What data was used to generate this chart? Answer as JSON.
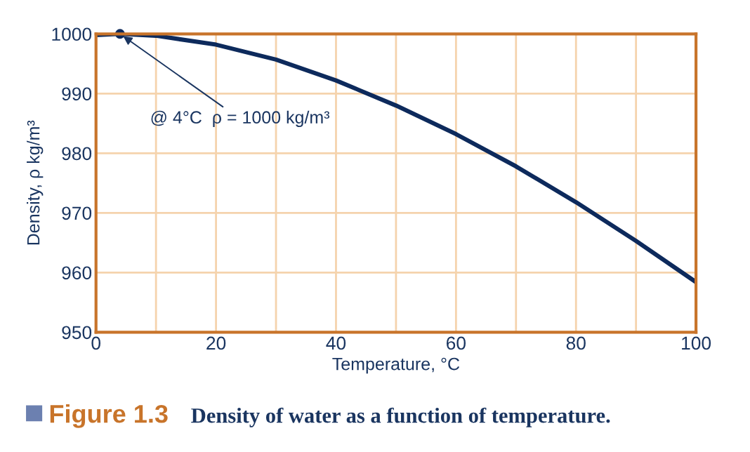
{
  "chart_data": {
    "type": "line",
    "title": "Figure 1.3",
    "subtitle": "Density of water as a function of temperature.",
    "xlabel": "Temperature, °C",
    "ylabel": "Density, ρ kg/m³",
    "x": [
      0,
      4,
      10,
      20,
      30,
      40,
      50,
      60,
      70,
      80,
      90,
      100
    ],
    "series": [
      {
        "color": "#0d2a5c",
        "values": [
          999.8,
          1000,
          999.7,
          998.2,
          995.7,
          992.2,
          988.0,
          983.2,
          977.8,
          971.8,
          965.3,
          958.4
        ]
      }
    ],
    "annotations": [
      {
        "text": "@ 4°C  ρ = 1000 kg/m³",
        "x": 4,
        "y": 1000
      }
    ],
    "xlim": [
      0,
      100
    ],
    "ylim": [
      950,
      1000
    ],
    "xticks": [
      0,
      20,
      40,
      60,
      80,
      100
    ],
    "yticks": [
      950,
      960,
      970,
      980,
      990,
      1000
    ],
    "grid": true,
    "line_style": "solid",
    "legend": false
  }
}
